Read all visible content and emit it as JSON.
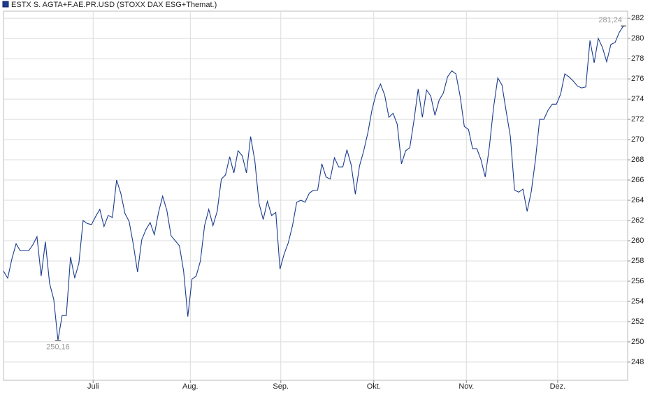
{
  "chart_data": {
    "type": "line",
    "series": [
      {
        "name": "ESTX S. AGTA+F.AE.PR.USD (STOXX DAX ESG+Themat.)",
        "color": "#1a3c8e",
        "values": [
          257.0,
          256.3,
          258.2,
          259.7,
          259.0,
          259.0,
          259.0,
          259.6,
          260.4,
          256.5,
          259.9,
          255.8,
          254.2,
          250.16,
          252.6,
          252.6,
          258.4,
          256.3,
          257.8,
          262.0,
          261.7,
          261.6,
          262.4,
          263.1,
          261.4,
          262.5,
          262.3,
          266.0,
          264.7,
          262.7,
          261.9,
          259.6,
          256.9,
          260.1,
          261.1,
          261.8,
          260.6,
          262.8,
          264.4,
          263.0,
          260.5,
          260.0,
          259.5,
          257.0,
          252.5,
          256.2,
          256.5,
          258.0,
          261.5,
          263.1,
          261.5,
          262.9,
          266.1,
          266.5,
          268.3,
          266.7,
          268.9,
          268.4,
          266.7,
          270.3,
          267.9,
          263.7,
          262.1,
          263.9,
          262.5,
          262.8,
          257.2,
          258.7,
          259.8,
          261.5,
          263.8,
          264.0,
          263.8,
          264.7,
          265.0,
          265.0,
          267.6,
          266.3,
          266.1,
          268.2,
          267.3,
          267.3,
          269.0,
          267.5,
          264.6,
          267.4,
          268.9,
          270.7,
          273.0,
          274.6,
          275.5,
          274.4,
          272.2,
          272.6,
          271.5,
          267.6,
          268.9,
          269.2,
          271.9,
          275.0,
          272.2,
          274.9,
          274.3,
          272.4,
          273.9,
          274.6,
          276.2,
          276.8,
          276.5,
          274.3,
          271.3,
          271.0,
          269.1,
          269.1,
          268.0,
          266.3,
          269.3,
          273.2,
          276.1,
          275.4,
          272.8,
          270.3,
          265.0,
          264.8,
          265.1,
          262.9,
          264.9,
          268.0,
          272.0,
          272.0,
          272.9,
          273.5,
          273.5,
          274.5,
          276.5,
          276.2,
          275.8,
          275.3,
          275.1,
          275.2,
          279.8,
          277.6,
          280.0,
          279.1,
          277.7,
          279.4,
          279.6,
          280.6,
          281.24
        ]
      }
    ],
    "x": [
      0,
      1,
      2,
      3,
      4,
      5,
      6,
      7,
      8,
      9,
      10,
      11,
      12,
      13,
      14,
      15,
      16,
      17,
      18,
      19,
      20,
      21,
      22,
      23,
      24,
      25,
      26,
      27,
      28,
      29,
      30,
      31,
      32,
      33,
      34,
      35,
      36,
      37,
      38,
      39,
      40,
      41,
      42,
      43,
      44,
      45,
      46,
      47,
      48,
      49,
      50,
      51,
      52,
      53,
      54,
      55,
      56,
      57,
      58,
      59,
      60,
      61,
      62,
      63,
      64,
      65,
      66,
      67,
      68,
      69,
      70,
      71,
      72,
      73,
      74,
      75,
      76,
      77,
      78,
      79,
      80,
      81,
      82,
      83,
      84,
      85,
      86,
      87,
      88,
      89,
      90,
      91,
      92,
      93,
      94,
      95,
      96,
      97,
      98,
      99,
      100,
      101,
      102,
      103,
      104,
      105,
      106,
      107,
      108,
      109,
      110,
      111,
      112,
      113,
      114,
      115,
      116,
      117,
      118,
      119,
      120,
      121,
      122,
      123,
      124,
      125,
      126,
      127,
      128,
      129,
      130,
      131,
      132,
      133,
      134,
      135,
      136,
      137,
      138,
      139,
      140,
      141,
      142,
      143,
      144,
      145,
      146,
      147,
      148
    ],
    "xlim": [
      0,
      149
    ],
    "xticks": [
      {
        "value": 21.4,
        "label": "Juli"
      },
      {
        "value": 44.6,
        "label": "Aug."
      },
      {
        "value": 66.2,
        "label": "Sep."
      },
      {
        "value": 88.4,
        "label": "Okt."
      },
      {
        "value": 110.5,
        "label": "Nov."
      },
      {
        "value": 132.3,
        "label": "Dez."
      }
    ],
    "ylim": [
      246.2,
      282.7
    ],
    "yticks": [
      248,
      250,
      252,
      254,
      256,
      258,
      260,
      262,
      264,
      266,
      268,
      270,
      272,
      274,
      276,
      278,
      280,
      282
    ],
    "grid": true,
    "annotations": [
      {
        "label": "250,16",
        "x": 13,
        "value": 250.16,
        "position": "below"
      },
      {
        "label": "281,24",
        "x": 148,
        "value": 281.24,
        "position": "above-left"
      }
    ]
  }
}
